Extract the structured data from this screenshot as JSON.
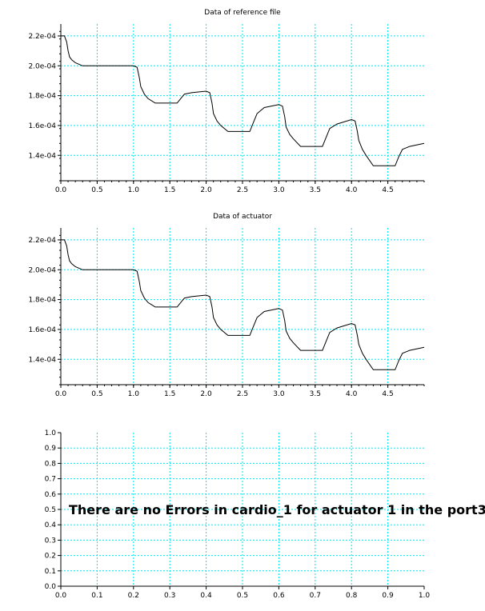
{
  "chart_data": [
    {
      "type": "line",
      "title": "Data of reference file",
      "xlim": [
        0,
        5
      ],
      "ylim": [
        0.000123,
        0.000228
      ],
      "xticks": [
        0.0,
        0.5,
        1.0,
        1.5,
        2.0,
        2.5,
        3.0,
        3.5,
        4.0,
        4.5
      ],
      "xtick_labels": [
        "0.0",
        "0.5",
        "1.0",
        "1.5",
        "2.0",
        "2.5",
        "3.0",
        "3.5",
        "4.0",
        "4.5"
      ],
      "yticks": [
        0.00014,
        0.00016,
        0.00018,
        0.0002,
        0.00022
      ],
      "ytick_labels": [
        "1.4e-04",
        "1.6e-04",
        "1.8e-04",
        "2.0e-04",
        "2.2e-04"
      ],
      "grid": true,
      "series": [
        {
          "x": [
            0.0,
            0.05,
            0.08,
            0.1,
            0.12,
            0.15,
            0.2,
            0.3,
            0.35,
            0.5,
            1.0,
            1.05,
            1.08,
            1.1,
            1.15,
            1.2,
            1.3,
            1.6,
            1.65,
            1.7,
            1.8,
            2.0,
            2.05,
            2.08,
            2.1,
            2.15,
            2.2,
            2.3,
            2.6,
            2.65,
            2.7,
            2.8,
            3.0,
            3.05,
            3.08,
            3.1,
            3.15,
            3.2,
            3.3,
            3.6,
            3.65,
            3.7,
            3.8,
            4.0,
            4.05,
            4.08,
            4.1,
            4.15,
            4.2,
            4.3,
            4.6,
            4.65,
            4.7,
            4.8,
            5.0
          ],
          "y": [
            0.00022,
            0.00022,
            0.000216,
            0.00021,
            0.000206,
            0.000204,
            0.000202,
            0.0002,
            0.0002,
            0.0002,
            0.0002,
            0.000199,
            0.000192,
            0.000186,
            0.000181,
            0.000178,
            0.000175,
            0.000175,
            0.000178,
            0.000181,
            0.000182,
            0.000183,
            0.000182,
            0.000175,
            0.000168,
            0.000163,
            0.00016,
            0.000156,
            0.000156,
            0.000162,
            0.000168,
            0.000172,
            0.000174,
            0.000173,
            0.000166,
            0.000159,
            0.000154,
            0.000151,
            0.000146,
            0.000146,
            0.000152,
            0.000158,
            0.000161,
            0.000164,
            0.000163,
            0.000156,
            0.00015,
            0.000144,
            0.00014,
            0.000133,
            0.000133,
            0.000139,
            0.000144,
            0.000146,
            0.000148
          ]
        }
      ]
    },
    {
      "type": "line",
      "title": "Data of actuator",
      "xlim": [
        0,
        5
      ],
      "ylim": [
        0.000123,
        0.000228
      ],
      "xticks": [
        0.0,
        0.5,
        1.0,
        1.5,
        2.0,
        2.5,
        3.0,
        3.5,
        4.0,
        4.5
      ],
      "xtick_labels": [
        "0.0",
        "0.5",
        "1.0",
        "1.5",
        "2.0",
        "2.5",
        "3.0",
        "3.5",
        "4.0",
        "4.5"
      ],
      "yticks": [
        0.00014,
        0.00016,
        0.00018,
        0.0002,
        0.00022
      ],
      "ytick_labels": [
        "1.4e-04",
        "1.6e-04",
        "1.8e-04",
        "2.0e-04",
        "2.2e-04"
      ],
      "grid": true,
      "series": [
        {
          "x": [
            0.0,
            0.05,
            0.08,
            0.1,
            0.12,
            0.15,
            0.2,
            0.3,
            0.35,
            0.5,
            1.0,
            1.05,
            1.08,
            1.1,
            1.15,
            1.2,
            1.3,
            1.6,
            1.65,
            1.7,
            1.8,
            2.0,
            2.05,
            2.08,
            2.1,
            2.15,
            2.2,
            2.3,
            2.6,
            2.65,
            2.7,
            2.8,
            3.0,
            3.05,
            3.08,
            3.1,
            3.15,
            3.2,
            3.3,
            3.6,
            3.65,
            3.7,
            3.8,
            4.0,
            4.05,
            4.08,
            4.1,
            4.15,
            4.2,
            4.3,
            4.6,
            4.65,
            4.7,
            4.8,
            5.0
          ],
          "y": [
            0.00022,
            0.00022,
            0.000216,
            0.00021,
            0.000206,
            0.000204,
            0.000202,
            0.0002,
            0.0002,
            0.0002,
            0.0002,
            0.000199,
            0.000192,
            0.000186,
            0.000181,
            0.000178,
            0.000175,
            0.000175,
            0.000178,
            0.000181,
            0.000182,
            0.000183,
            0.000182,
            0.000175,
            0.000168,
            0.000163,
            0.00016,
            0.000156,
            0.000156,
            0.000162,
            0.000168,
            0.000172,
            0.000174,
            0.000173,
            0.000166,
            0.000159,
            0.000154,
            0.000151,
            0.000146,
            0.000146,
            0.000152,
            0.000158,
            0.000161,
            0.000164,
            0.000163,
            0.000156,
            0.00015,
            0.000144,
            0.00014,
            0.000133,
            0.000133,
            0.000139,
            0.000144,
            0.000146,
            0.000148
          ]
        }
      ]
    },
    {
      "type": "line",
      "title": "",
      "xlim": [
        0,
        1
      ],
      "ylim": [
        0,
        1
      ],
      "xticks": [
        0.0,
        0.1,
        0.2,
        0.3,
        0.4,
        0.5,
        0.6,
        0.7,
        0.8,
        0.9,
        1.0
      ],
      "xtick_labels": [
        "0.0",
        "0.1",
        "0.2",
        "0.3",
        "0.4",
        "0.5",
        "0.6",
        "0.7",
        "0.8",
        "0.9",
        "1.0"
      ],
      "yticks": [
        0.0,
        0.1,
        0.2,
        0.3,
        0.4,
        0.5,
        0.6,
        0.7,
        0.8,
        0.9,
        1.0
      ],
      "ytick_labels": [
        "0.0",
        "0.1",
        "0.2",
        "0.3",
        "0.4",
        "0.5",
        "0.6",
        "0.7",
        "0.8",
        "0.9",
        "1.0"
      ],
      "grid": true,
      "annotations": [
        "There are no Errors in cardio_1 for actuator 1 in the port3"
      ],
      "series": []
    }
  ],
  "colors": {
    "grid": "#00e5ee",
    "line": "#000000"
  }
}
